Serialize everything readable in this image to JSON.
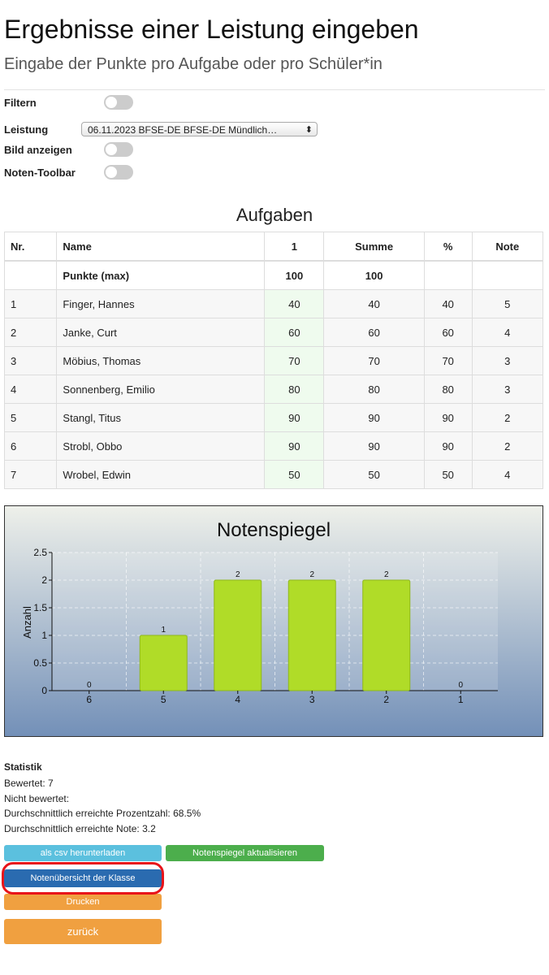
{
  "header": {
    "title": "Ergebnisse einer Leistung eingeben",
    "subtitle": "Eingabe der Punkte pro Aufgabe oder pro Schüler*in"
  },
  "settings": {
    "filter_label": "Filtern",
    "leistung_label": "Leistung",
    "leistung_value": "06.11.2023 BFSE-DE BFSE-DE Mündlich…",
    "bild_label": "Bild anzeigen",
    "toolbar_label": "Noten-Toolbar"
  },
  "table": {
    "title": "Aufgaben",
    "columns": [
      "Nr.",
      "Name",
      "1",
      "Summe",
      "%",
      "Note"
    ],
    "max_row": [
      "Punkte (max)",
      "100",
      "100"
    ],
    "rows": [
      [
        "1",
        "Finger, Hannes",
        "40",
        "40",
        "40",
        "5"
      ],
      [
        "2",
        "Janke, Curt",
        "60",
        "60",
        "60",
        "4"
      ],
      [
        "3",
        "Möbius, Thomas",
        "70",
        "70",
        "70",
        "3"
      ],
      [
        "4",
        "Sonnenberg, Emilio",
        "80",
        "80",
        "80",
        "3"
      ],
      [
        "5",
        "Stangl, Titus",
        "90",
        "90",
        "90",
        "2"
      ],
      [
        "6",
        "Strobl, Obbo",
        "90",
        "90",
        "90",
        "2"
      ],
      [
        "7",
        "Wrobel, Edwin",
        "50",
        "50",
        "50",
        "4"
      ]
    ]
  },
  "chart_data": {
    "type": "bar",
    "title": "Notenspiegel",
    "y_label": "Anzahl",
    "categories": [
      "6",
      "5",
      "4",
      "3",
      "2",
      "1"
    ],
    "values": [
      0,
      1,
      2,
      2,
      2,
      0
    ],
    "color": "#b0dc28",
    "ylim": [
      0,
      2.5
    ],
    "yticks": [
      0,
      0.5,
      1,
      1.5,
      2,
      2.5
    ],
    "grid": true
  },
  "statistics": {
    "title": "Statistik",
    "lines": [
      "Bewertet: 7",
      "Nicht bewertet:",
      "Durchschnittlich erreichte Prozentzahl: 68.5%",
      "Durchschnittlich erreichte Note: 3.2"
    ]
  },
  "buttons": {
    "csv": "als csv herunterladen",
    "refresh": "Notenspiegel aktualisieren",
    "overview": "Notenübersicht der Klasse",
    "print": "Drucken",
    "back": "zurück"
  }
}
